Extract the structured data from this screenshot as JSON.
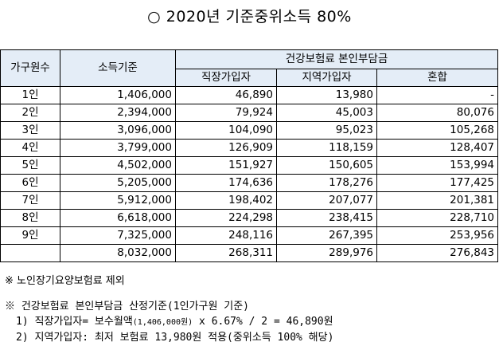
{
  "title": "○ 2020년 기준중위소득 80%",
  "table": {
    "col_household": "가구원수",
    "col_income": "소득기준",
    "col_premium_group": "건강보험료 본인부담금",
    "col_employee": "직장가입자",
    "col_regional": "지역가입자",
    "col_mixed": "혼합",
    "rows": [
      {
        "household": "1인",
        "income": "1,406,000",
        "employee": "46,890",
        "regional": "13,980",
        "mixed": "-"
      },
      {
        "household": "2인",
        "income": "2,394,000",
        "employee": "79,924",
        "regional": "45,003",
        "mixed": "80,076"
      },
      {
        "household": "3인",
        "income": "3,096,000",
        "employee": "104,090",
        "regional": "95,023",
        "mixed": "105,268"
      },
      {
        "household": "4인",
        "income": "3,799,000",
        "employee": "126,909",
        "regional": "118,159",
        "mixed": "128,407"
      },
      {
        "household": "5인",
        "income": "4,502,000",
        "employee": "151,927",
        "regional": "150,605",
        "mixed": "153,994"
      },
      {
        "household": "6인",
        "income": "5,205,000",
        "employee": "174,636",
        "regional": "178,276",
        "mixed": "177,425"
      },
      {
        "household": "7인",
        "income": "5,912,000",
        "employee": "198,402",
        "regional": "207,077",
        "mixed": "201,381"
      },
      {
        "household": "8인",
        "income": "6,618,000",
        "employee": "224,298",
        "regional": "238,415",
        "mixed": "228,710"
      },
      {
        "household": "9인",
        "income": "7,325,000",
        "employee": "248,116",
        "regional": "267,395",
        "mixed": "253,956"
      },
      {
        "household": "",
        "income": "8,032,000",
        "employee": "268,311",
        "regional": "289,976",
        "mixed": "276,843"
      }
    ]
  },
  "notes": {
    "exclusion": "※ 노인장기요양보험료 제외",
    "criteria_heading": "※ 건강보험료 본인부담금 산정기준(1인가구원 기준)",
    "line1_prefix": "1) 직장가입자= 보수월액",
    "line1_small": "(1,406,000원)",
    "line1_suffix": " x 6.67% / 2 = 46,890원",
    "line2": "2) 지역가입자: 최저 보험료 13,980원 적용(중위소득 100% 해당)"
  }
}
